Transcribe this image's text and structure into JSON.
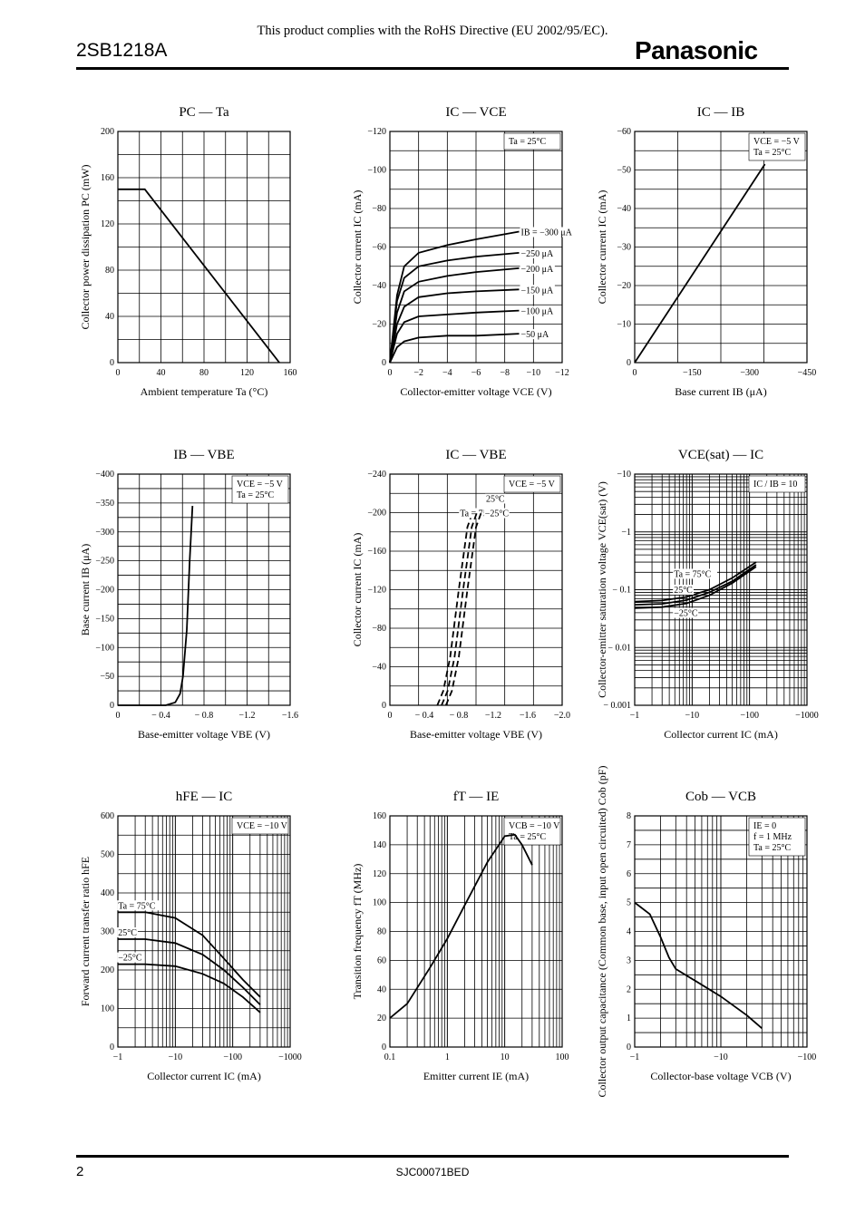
{
  "header": {
    "notice": "This product complies with the RoHS Directive (EU 2002/95/EC).",
    "part_number": "2SB1218A",
    "brand": "Panasonic"
  },
  "footer": {
    "page": "2",
    "doc_code": "SJC00071BED"
  },
  "chart_data": [
    {
      "type": "line",
      "title": "PC — Ta",
      "xlabel": "Ambient temperature Ta (°C)",
      "ylabel": "Collector power dissipation PC (mW)",
      "xlim": [
        0,
        160
      ],
      "ylim": [
        0,
        200
      ],
      "x_ticks": [
        "0",
        "40",
        "80",
        "120",
        "160"
      ],
      "y_ticks": [
        "0",
        "40",
        "80",
        "120",
        "160",
        "200"
      ],
      "series": [
        {
          "x": [
            0,
            25,
            150
          ],
          "y": [
            150,
            150,
            0
          ]
        }
      ]
    },
    {
      "type": "line",
      "title": "IC — VCE",
      "xlabel": "Collector-emitter voltage VCE (V)",
      "ylabel": "Collector current IC (mA)",
      "xlim": [
        0,
        -12
      ],
      "ylim": [
        0,
        -120
      ],
      "x_ticks": [
        "0",
        "−2",
        "−4",
        "−6",
        "−8",
        "−10",
        "−12"
      ],
      "y_ticks": [
        "0",
        "−20",
        "−40",
        "−60",
        "−80",
        "−100",
        "−120"
      ],
      "condition": [
        "Ta = 25°C"
      ],
      "series": [
        {
          "name": "IB = −300 μA",
          "x": [
            0,
            -0.5,
            -1,
            -2,
            -4,
            -6,
            -9
          ],
          "y": [
            0,
            -35,
            -50,
            -57,
            -61,
            -64,
            -68
          ]
        },
        {
          "name": "−250 μA",
          "x": [
            0,
            -0.5,
            -1,
            -2,
            -4,
            -6,
            -9
          ],
          "y": [
            0,
            -32,
            -44,
            -50,
            -53,
            -55,
            -57
          ]
        },
        {
          "name": "−200 μA",
          "x": [
            0,
            -0.5,
            -1,
            -2,
            -4,
            -6,
            -9
          ],
          "y": [
            0,
            -26,
            -37,
            -42,
            -45,
            -47,
            -49
          ]
        },
        {
          "name": "−150 μA",
          "x": [
            0,
            -0.5,
            -1,
            -2,
            -4,
            -6,
            -9
          ],
          "y": [
            0,
            -20,
            -29,
            -34,
            -36,
            -37,
            -38
          ]
        },
        {
          "name": "−100 μA",
          "x": [
            0,
            -0.5,
            -1,
            -2,
            -4,
            -6,
            -9
          ],
          "y": [
            0,
            -15,
            -21,
            -24,
            -25,
            -26,
            -27
          ]
        },
        {
          "name": "−50 μA",
          "x": [
            0,
            -0.5,
            -1,
            -2,
            -4,
            -6,
            -9
          ],
          "y": [
            0,
            -8,
            -11,
            -13,
            -14,
            -14,
            -15
          ]
        }
      ]
    },
    {
      "type": "line",
      "title": "IC — IB",
      "xlabel": "Base current IB (μA)",
      "ylabel": "Collector current IC (mA)",
      "xlim": [
        0,
        -450
      ],
      "ylim": [
        0,
        -60
      ],
      "x_ticks": [
        "0",
        "−150",
        "−300",
        "−450"
      ],
      "y_ticks": [
        "0",
        "−10",
        "−20",
        "−30",
        "−40",
        "−50",
        "−60"
      ],
      "condition": [
        "VCE = −5 V",
        "Ta = 25°C"
      ],
      "series": [
        {
          "x": [
            0,
            -340
          ],
          "y": [
            0,
            -51.5
          ]
        }
      ]
    },
    {
      "type": "line",
      "title": "IB — VBE",
      "xlabel": "Base-emitter voltage VBE (V)",
      "ylabel": "Base current IB (μA)",
      "xlim": [
        0,
        -1.8
      ],
      "ylim": [
        0,
        -400
      ],
      "x_ticks": [
        "0",
        "− 0.4",
        "− 0.8",
        "−1.2",
        "−1.6"
      ],
      "y_ticks": [
        "0",
        "−50",
        "−100",
        "−150",
        "−200",
        "−250",
        "−300",
        "−350",
        "−400"
      ],
      "condition": [
        "VCE = −5 V",
        "Ta = 25°C"
      ],
      "series": [
        {
          "x": [
            0,
            -0.5,
            -0.6,
            -0.65,
            -0.68,
            -0.72,
            -0.75,
            -0.78
          ],
          "y": [
            0,
            0,
            -5,
            -20,
            -50,
            -130,
            -250,
            -345
          ]
        }
      ]
    },
    {
      "type": "line",
      "title": "IC — VBE",
      "xlabel": "Base-emitter voltage VBE (V)",
      "ylabel": "Collector current IC (mA)",
      "xlim": [
        0,
        -2.0
      ],
      "ylim": [
        0,
        -240
      ],
      "x_ticks": [
        "0",
        "− 0.4",
        "− 0.8",
        "−1.2",
        "−1.6",
        "−2.0"
      ],
      "y_ticks": [
        "0",
        "−40",
        "−80",
        "−120",
        "−160",
        "−200",
        "−240"
      ],
      "condition": [
        "VCE = −5 V"
      ],
      "series": [
        {
          "name": "Ta = 75°C",
          "x": [
            -0.55,
            -0.62,
            -0.7,
            -0.8,
            -0.9,
            -0.96
          ],
          "y": [
            0,
            -15,
            -50,
            -120,
            -185,
            -200
          ]
        },
        {
          "name": "25°C",
          "x": [
            -0.6,
            -0.67,
            -0.75,
            -0.85,
            -0.95,
            -1.01
          ],
          "y": [
            0,
            -15,
            -50,
            -120,
            -185,
            -200
          ]
        },
        {
          "name": "−25°C",
          "x": [
            -0.65,
            -0.72,
            -0.8,
            -0.9,
            -1.0,
            -1.06
          ],
          "y": [
            0,
            -15,
            -50,
            -120,
            -185,
            -200
          ]
        }
      ]
    },
    {
      "type": "line",
      "title": "VCE(sat) — IC",
      "xlabel": "Collector current IC (mA)",
      "ylabel": "Collector-emitter saturation voltage VCE(sat) (V)",
      "x_scale": "log",
      "y_scale": "log",
      "xlim": [
        -1,
        -1000
      ],
      "ylim": [
        -0.001,
        -10
      ],
      "x_ticks": [
        "−1",
        "−10",
        "−100",
        "−1000"
      ],
      "y_ticks": [
        "− 0.001",
        "− 0.01",
        "− 0.1",
        "−1",
        "−10"
      ],
      "condition": [
        "IC / IB = 10"
      ],
      "series": [
        {
          "name": "Ta = 75°C",
          "x": [
            -1,
            -3,
            -8,
            -20,
            -50,
            -130
          ],
          "y": [
            -0.062,
            -0.065,
            -0.075,
            -0.1,
            -0.16,
            -0.3
          ]
        },
        {
          "name": "25°C",
          "x": [
            -1,
            -3,
            -8,
            -20,
            -50,
            -130
          ],
          "y": [
            -0.055,
            -0.057,
            -0.066,
            -0.09,
            -0.14,
            -0.27
          ]
        },
        {
          "name": "−25°C",
          "x": [
            -1,
            -3,
            -8,
            -20,
            -50,
            -130
          ],
          "y": [
            -0.048,
            -0.05,
            -0.058,
            -0.08,
            -0.13,
            -0.25
          ]
        }
      ]
    },
    {
      "type": "line",
      "title": "hFE — IC",
      "xlabel": "Collector current IC (mA)",
      "ylabel": "Forward current transfer ratio hFE",
      "x_scale": "log",
      "xlim": [
        -1,
        -1000
      ],
      "ylim": [
        0,
        600
      ],
      "x_ticks": [
        "−1",
        "−10",
        "−100",
        "−1000"
      ],
      "y_ticks": [
        "0",
        "100",
        "200",
        "300",
        "400",
        "500",
        "600"
      ],
      "condition": [
        "VCE = −10 V"
      ],
      "series": [
        {
          "name": "Ta = 75°C",
          "x": [
            -1,
            -3,
            -10,
            -30,
            -70,
            -150,
            -300
          ],
          "y": [
            350,
            350,
            335,
            290,
            230,
            175,
            130
          ]
        },
        {
          "name": "25°C",
          "x": [
            -1,
            -3,
            -10,
            -30,
            -70,
            -150,
            -300
          ],
          "y": [
            280,
            280,
            270,
            240,
            200,
            155,
            110
          ]
        },
        {
          "name": "−25°C",
          "x": [
            -1,
            -3,
            -10,
            -30,
            -70,
            -150,
            -300
          ],
          "y": [
            215,
            215,
            210,
            190,
            165,
            130,
            90
          ]
        }
      ]
    },
    {
      "type": "line",
      "title": "fT — IE",
      "xlabel": "Emitter current IE (mA)",
      "ylabel": "Transition frequency fT (MHz)",
      "x_scale": "log",
      "xlim": [
        0.1,
        100
      ],
      "ylim": [
        0,
        160
      ],
      "x_ticks": [
        "0.1",
        "1",
        "10",
        "100"
      ],
      "y_ticks": [
        "0",
        "20",
        "40",
        "60",
        "80",
        "100",
        "120",
        "140",
        "160"
      ],
      "condition": [
        "VCB = −10 V",
        "Ta = 25°C"
      ],
      "series": [
        {
          "x": [
            0.1,
            0.2,
            0.5,
            1,
            2,
            5,
            10,
            15,
            20,
            30
          ],
          "y": [
            20,
            30,
            55,
            75,
            98,
            128,
            146,
            147,
            140,
            126
          ]
        }
      ]
    },
    {
      "type": "line",
      "title": "Cob — VCB",
      "xlabel": "Collector-base voltage VCB (V)",
      "ylabel": "Collector output capacitance (Common base, input open circuited) Cob (pF)",
      "x_scale": "log",
      "xlim": [
        -1,
        -100
      ],
      "ylim": [
        0,
        8
      ],
      "x_ticks": [
        "−1",
        "−10",
        "−100"
      ],
      "y_ticks": [
        "0",
        "1",
        "2",
        "3",
        "4",
        "5",
        "6",
        "7",
        "8"
      ],
      "condition": [
        "IE = 0",
        "f = 1 MHz",
        "Ta = 25°C"
      ],
      "series": [
        {
          "x": [
            -1,
            -1.5,
            -2,
            -2.5,
            -3,
            -5,
            -10,
            -20,
            -30
          ],
          "y": [
            5.0,
            4.6,
            3.8,
            3.1,
            2.7,
            2.3,
            1.75,
            1.1,
            0.65
          ]
        }
      ]
    }
  ]
}
